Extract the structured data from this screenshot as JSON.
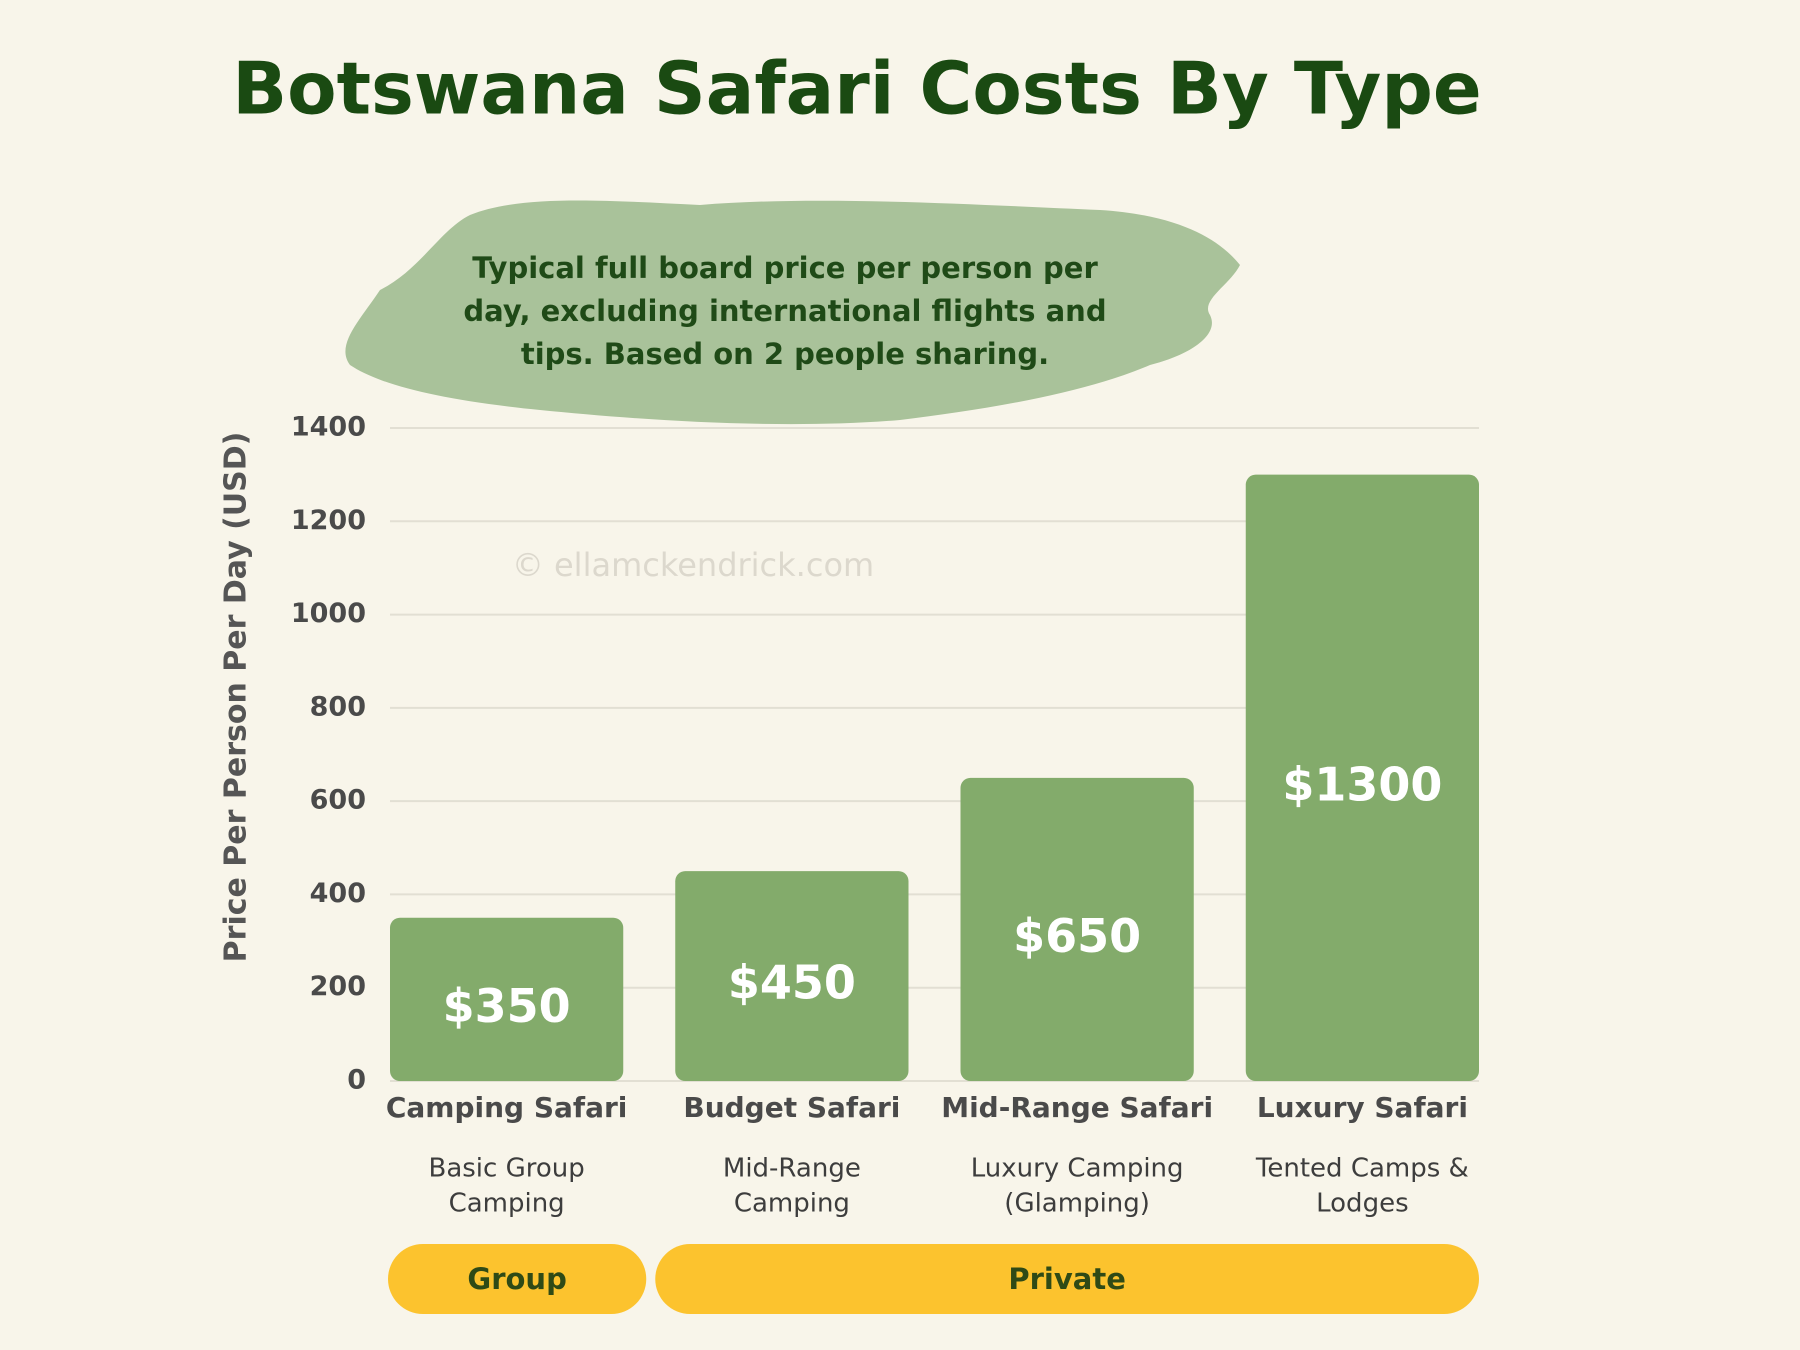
{
  "chart_data": {
    "type": "bar",
    "title": "Botswana Safari Costs By Type",
    "subtitle": [
      "Typical full board price per person per",
      "day, excluding international flights and",
      "tips. Based on 2 people sharing."
    ],
    "y_label": "Price Per Person Per Day (USD)",
    "watermark": "© ellamckendrick.com",
    "categories": [
      "Camping Safari",
      "Budget Safari",
      "Mid-Range Safari",
      "Luxury Safari"
    ],
    "descriptions": [
      [
        "Basic Group",
        "Camping"
      ],
      [
        "Mid-Range",
        "Camping"
      ],
      [
        "Luxury Camping",
        "(Glamping)"
      ],
      [
        "Tented Camps &",
        "Lodges"
      ]
    ],
    "groups": [
      "Group",
      "Private"
    ],
    "values": [
      350,
      450,
      650,
      1300
    ],
    "value_labels": [
      "$350",
      "$450",
      "$650",
      "$1300"
    ],
    "color": "#83ab6b",
    "ylim": [
      0,
      1400
    ],
    "yticks": [
      0,
      200,
      400,
      600,
      800,
      1000,
      1200,
      1400
    ],
    "grid": true
  }
}
